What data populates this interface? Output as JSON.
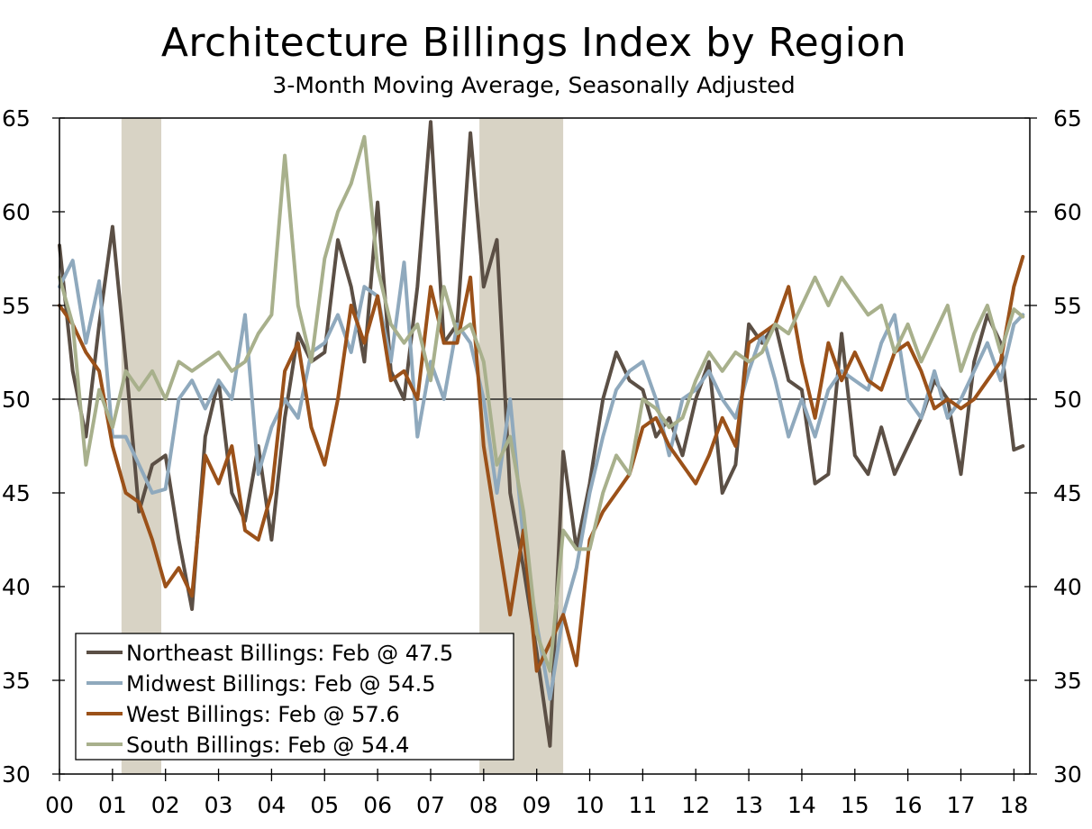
{
  "chart_data": {
    "type": "line",
    "title": "Architecture Billings Index by Region",
    "subtitle": "3-Month Moving Average, Seasonally Adjusted",
    "xlabel": "",
    "ylabel": "",
    "ylim": [
      30,
      65
    ],
    "yticks": [
      30,
      35,
      40,
      45,
      50,
      55,
      60,
      65
    ],
    "xlim": [
      2000,
      2018.3
    ],
    "xticks": [
      {
        "value": 2000,
        "label": "00"
      },
      {
        "value": 2001,
        "label": "01"
      },
      {
        "value": 2002,
        "label": "02"
      },
      {
        "value": 2003,
        "label": "03"
      },
      {
        "value": 2004,
        "label": "04"
      },
      {
        "value": 2005,
        "label": "05"
      },
      {
        "value": 2006,
        "label": "06"
      },
      {
        "value": 2007,
        "label": "07"
      },
      {
        "value": 2008,
        "label": "08"
      },
      {
        "value": 2009,
        "label": "09"
      },
      {
        "value": 2010,
        "label": "10"
      },
      {
        "value": 2011,
        "label": "11"
      },
      {
        "value": 2012,
        "label": "12"
      },
      {
        "value": 2013,
        "label": "13"
      },
      {
        "value": 2014,
        "label": "14"
      },
      {
        "value": 2015,
        "label": "15"
      },
      {
        "value": 2016,
        "label": "16"
      },
      {
        "value": 2017,
        "label": "17"
      },
      {
        "value": 2018,
        "label": "18"
      }
    ],
    "reference_line": 50,
    "recessions": [
      [
        2001.17,
        2001.92
      ],
      [
        2007.92,
        2009.5
      ]
    ],
    "grid": false,
    "legend_position": "bottom-left",
    "colors": {
      "Northeast": "#5b4f45",
      "Midwest": "#8fa9bd",
      "West": "#9b5119",
      "South": "#a8b08c",
      "recession": "#d8d3c5",
      "axis": "#000000"
    },
    "series": [
      {
        "name": "Northeast Billings: Feb @ 47.5",
        "key": "Northeast",
        "x": [
          2000.0,
          2000.25,
          2000.5,
          2000.75,
          2001.0,
          2001.25,
          2001.5,
          2001.75,
          2002.0,
          2002.25,
          2002.5,
          2002.75,
          2003.0,
          2003.25,
          2003.5,
          2003.75,
          2004.0,
          2004.25,
          2004.5,
          2004.75,
          2005.0,
          2005.25,
          2005.5,
          2005.75,
          2006.0,
          2006.25,
          2006.5,
          2006.75,
          2007.0,
          2007.25,
          2007.5,
          2007.75,
          2008.0,
          2008.25,
          2008.5,
          2008.75,
          2009.0,
          2009.25,
          2009.5,
          2009.75,
          2010.0,
          2010.25,
          2010.5,
          2010.75,
          2011.0,
          2011.25,
          2011.5,
          2011.75,
          2012.0,
          2012.25,
          2012.5,
          2012.75,
          2013.0,
          2013.25,
          2013.5,
          2013.75,
          2014.0,
          2014.25,
          2014.5,
          2014.75,
          2015.0,
          2015.25,
          2015.5,
          2015.75,
          2016.0,
          2016.25,
          2016.5,
          2016.75,
          2017.0,
          2017.25,
          2017.5,
          2017.75,
          2018.0,
          2018.17
        ],
        "y": [
          58.2,
          51.5,
          48.0,
          54.0,
          59.2,
          52.0,
          44.0,
          46.5,
          47.0,
          42.5,
          38.8,
          48.0,
          51.0,
          45.0,
          43.5,
          47.5,
          42.5,
          49.0,
          53.5,
          52.0,
          52.5,
          58.5,
          56.0,
          52.0,
          60.5,
          51.5,
          50.0,
          56.0,
          64.8,
          53.0,
          54.0,
          64.2,
          56.0,
          58.5,
          45.0,
          41.0,
          36.5,
          31.5,
          47.2,
          42.0,
          45.5,
          50.0,
          52.5,
          51.0,
          50.5,
          48.0,
          49.0,
          47.0,
          50.0,
          52.0,
          45.0,
          46.5,
          54.0,
          53.0,
          54.0,
          51.0,
          50.5,
          45.5,
          46.0,
          53.5,
          47.0,
          46.0,
          48.5,
          46.0,
          47.5,
          49.0,
          51.0,
          50.0,
          46.0,
          52.0,
          54.5,
          53.0,
          47.3,
          47.5
        ]
      },
      {
        "name": "Midwest Billings: Feb @ 54.5",
        "key": "Midwest",
        "x": [
          2000.0,
          2000.25,
          2000.5,
          2000.75,
          2001.0,
          2001.25,
          2001.5,
          2001.75,
          2002.0,
          2002.25,
          2002.5,
          2002.75,
          2003.0,
          2003.25,
          2003.5,
          2003.75,
          2004.0,
          2004.25,
          2004.5,
          2004.75,
          2005.0,
          2005.25,
          2005.5,
          2005.75,
          2006.0,
          2006.25,
          2006.5,
          2006.75,
          2007.0,
          2007.25,
          2007.5,
          2007.75,
          2008.0,
          2008.25,
          2008.5,
          2008.75,
          2009.0,
          2009.25,
          2009.5,
          2009.75,
          2010.0,
          2010.25,
          2010.5,
          2010.75,
          2011.0,
          2011.25,
          2011.5,
          2011.75,
          2012.0,
          2012.25,
          2012.5,
          2012.75,
          2013.0,
          2013.25,
          2013.5,
          2013.75,
          2014.0,
          2014.25,
          2014.5,
          2014.75,
          2015.0,
          2015.25,
          2015.5,
          2015.75,
          2016.0,
          2016.25,
          2016.5,
          2016.75,
          2017.0,
          2017.25,
          2017.5,
          2017.75,
          2018.0,
          2018.17
        ],
        "y": [
          56.0,
          57.4,
          53.0,
          56.3,
          48.0,
          48.0,
          46.5,
          45.0,
          45.2,
          50.0,
          51.0,
          49.5,
          51.0,
          50.0,
          54.5,
          46.0,
          48.5,
          50.0,
          49.0,
          52.5,
          53.0,
          54.5,
          52.5,
          56.0,
          55.5,
          52.0,
          57.3,
          48.0,
          52.0,
          50.0,
          54.0,
          53.0,
          50.0,
          45.0,
          50.0,
          42.5,
          38.0,
          34.0,
          38.5,
          41.0,
          45.0,
          48.0,
          50.5,
          51.5,
          52.0,
          50.0,
          47.0,
          50.0,
          50.5,
          51.5,
          50.0,
          49.0,
          51.5,
          53.5,
          51.0,
          48.0,
          50.0,
          48.0,
          50.5,
          51.5,
          51.0,
          50.5,
          53.0,
          54.5,
          50.0,
          49.0,
          51.5,
          49.0,
          50.0,
          51.5,
          53.0,
          51.0,
          54.0,
          54.5
        ]
      },
      {
        "name": "West Billings: Feb @ 57.6",
        "key": "West",
        "x": [
          2000.0,
          2000.25,
          2000.5,
          2000.75,
          2001.0,
          2001.25,
          2001.5,
          2001.75,
          2002.0,
          2002.25,
          2002.5,
          2002.75,
          2003.0,
          2003.25,
          2003.5,
          2003.75,
          2004.0,
          2004.25,
          2004.5,
          2004.75,
          2005.0,
          2005.25,
          2005.5,
          2005.75,
          2006.0,
          2006.25,
          2006.5,
          2006.75,
          2007.0,
          2007.25,
          2007.5,
          2007.75,
          2008.0,
          2008.25,
          2008.5,
          2008.75,
          2009.0,
          2009.25,
          2009.5,
          2009.75,
          2010.0,
          2010.25,
          2010.5,
          2010.75,
          2011.0,
          2011.25,
          2011.5,
          2011.75,
          2012.0,
          2012.25,
          2012.5,
          2012.75,
          2013.0,
          2013.25,
          2013.5,
          2013.75,
          2014.0,
          2014.25,
          2014.5,
          2014.75,
          2015.0,
          2015.25,
          2015.5,
          2015.75,
          2016.0,
          2016.25,
          2016.5,
          2016.75,
          2017.0,
          2017.25,
          2017.5,
          2017.75,
          2018.0,
          2018.17
        ],
        "y": [
          55.0,
          54.0,
          52.5,
          51.5,
          47.5,
          45.0,
          44.5,
          42.5,
          40.0,
          41.0,
          39.5,
          47.0,
          45.5,
          47.5,
          43.0,
          42.5,
          45.0,
          51.5,
          53.0,
          48.5,
          46.5,
          50.0,
          55.0,
          53.0,
          55.5,
          51.0,
          51.5,
          50.0,
          56.0,
          53.0,
          53.0,
          56.5,
          47.5,
          43.0,
          38.5,
          43.0,
          35.5,
          37.0,
          38.5,
          35.8,
          42.5,
          44.0,
          45.0,
          46.0,
          48.5,
          49.0,
          47.5,
          46.5,
          45.5,
          47.0,
          49.0,
          47.5,
          53.0,
          53.5,
          54.0,
          56.0,
          52.0,
          49.0,
          53.0,
          51.0,
          52.5,
          51.0,
          50.5,
          52.5,
          53.0,
          51.5,
          49.5,
          50.0,
          49.5,
          50.0,
          51.0,
          52.0,
          56.0,
          57.6
        ]
      },
      {
        "name": "South Billings: Feb @ 54.4",
        "key": "South",
        "x": [
          2000.0,
          2000.25,
          2000.5,
          2000.75,
          2001.0,
          2001.25,
          2001.5,
          2001.75,
          2002.0,
          2002.25,
          2002.5,
          2002.75,
          2003.0,
          2003.25,
          2003.5,
          2003.75,
          2004.0,
          2004.25,
          2004.5,
          2004.75,
          2005.0,
          2005.25,
          2005.5,
          2005.75,
          2006.0,
          2006.25,
          2006.5,
          2006.75,
          2007.0,
          2007.25,
          2007.5,
          2007.75,
          2008.0,
          2008.25,
          2008.5,
          2008.75,
          2009.0,
          2009.25,
          2009.5,
          2009.75,
          2010.0,
          2010.25,
          2010.5,
          2010.75,
          2011.0,
          2011.25,
          2011.5,
          2011.75,
          2012.0,
          2012.25,
          2012.5,
          2012.75,
          2013.0,
          2013.25,
          2013.5,
          2013.75,
          2014.0,
          2014.25,
          2014.5,
          2014.75,
          2015.0,
          2015.25,
          2015.5,
          2015.75,
          2016.0,
          2016.25,
          2016.5,
          2016.75,
          2017.0,
          2017.25,
          2017.5,
          2017.75,
          2018.0,
          2018.17
        ],
        "y": [
          56.5,
          54.0,
          46.5,
          50.5,
          48.5,
          51.5,
          50.5,
          51.5,
          50.0,
          52.0,
          51.5,
          52.0,
          52.5,
          51.5,
          52.0,
          53.5,
          54.5,
          63.0,
          55.0,
          52.0,
          57.5,
          60.0,
          61.5,
          64.0,
          57.0,
          54.0,
          53.0,
          54.0,
          51.0,
          56.0,
          53.5,
          54.0,
          52.0,
          46.5,
          48.0,
          44.0,
          37.5,
          35.5,
          43.0,
          42.0,
          42.0,
          45.0,
          47.0,
          46.0,
          50.0,
          49.5,
          48.5,
          49.0,
          51.0,
          52.5,
          51.5,
          52.5,
          52.0,
          52.5,
          54.0,
          53.5,
          55.0,
          56.5,
          55.0,
          56.5,
          55.5,
          54.5,
          55.0,
          52.5,
          54.0,
          52.0,
          53.5,
          55.0,
          51.5,
          53.5,
          55.0,
          52.5,
          54.8,
          54.4
        ]
      }
    ]
  }
}
